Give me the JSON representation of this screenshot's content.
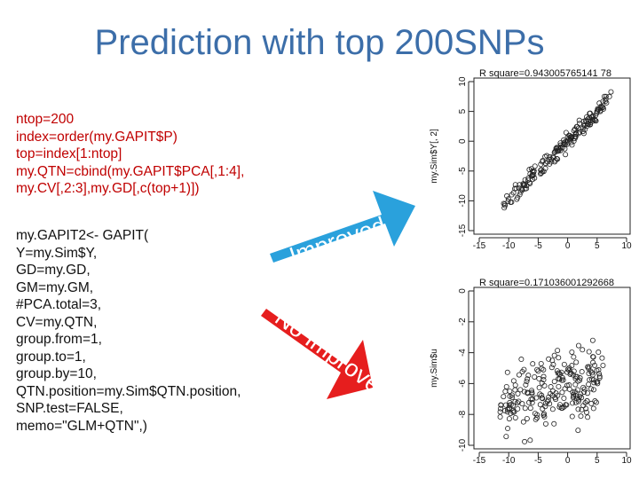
{
  "slide": {
    "title": "Prediction with top 200SNPs",
    "code_setup": [
      "ntop=200",
      "index=order(my.GAPIT$P)",
      "top=index[1:ntop]",
      "my.QTN=cbind(my.GAPIT$PCA[,1:4],",
      "my.CV[,2:3],my.GD[,c(top+1)])"
    ],
    "code_call": [
      "my.GAPIT2<- GAPIT(",
      "Y=my.Sim$Y,",
      "GD=my.GD,",
      "GM=my.GM,",
      "#PCA.total=3,",
      "CV=my.QTN,",
      "group.from=1,",
      "group.to=1,",
      "group.by=10,",
      "QTN.position=my.Sim$QTN.position,",
      "SNP.test=FALSE,",
      "memo=\"GLM+QTN\",)"
    ]
  },
  "arrows": {
    "improved": {
      "label": "Improved",
      "color": "#2aa1dc"
    },
    "no_improve": {
      "label": "No Improve",
      "color": "#e61e1e"
    }
  },
  "chart_data": [
    {
      "type": "scatter",
      "title": "R square=0.943005765141 78",
      "ylabel": "my.Sim$Y[, 2]",
      "xlabel": "",
      "xlim": [
        -15,
        10
      ],
      "ylim": [
        -15,
        10
      ],
      "xticks": [
        "-15",
        "-10",
        "-5",
        "0",
        "5",
        "10"
      ],
      "yticks": [
        "-15",
        "-10",
        "-5",
        "0",
        "5",
        "10"
      ],
      "pattern": "tight positive linear trend along y = x"
    },
    {
      "type": "scatter",
      "title": "R square=0.171036001292668",
      "ylabel": "my.Sim$u",
      "xlabel": "",
      "xlim": [
        -15,
        10
      ],
      "ylim": [
        -10,
        0
      ],
      "xticks": [
        "-15",
        "-10",
        "-5",
        "0",
        "5",
        "10"
      ],
      "yticks": [
        "-10",
        "-8",
        "-6",
        "-4",
        "-2",
        "0"
      ],
      "pattern": "diffuse weak positive trend"
    }
  ]
}
